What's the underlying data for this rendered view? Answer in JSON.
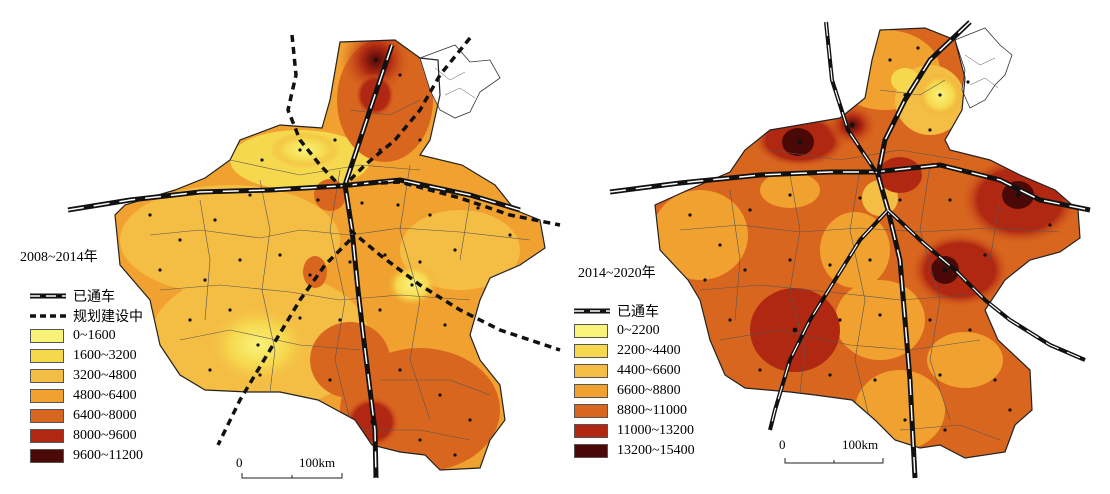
{
  "left_map": {
    "title": "2008~2014年",
    "legend": {
      "rail_operational": "已通车",
      "rail_planned": "规划建设中",
      "classes": [
        {
          "label": "0~1600",
          "color": "#f9f37a"
        },
        {
          "label": "1600~3200",
          "color": "#f6d84e"
        },
        {
          "label": "3200~4800",
          "color": "#f4bd44"
        },
        {
          "label": "4800~6400",
          "color": "#f0a12f"
        },
        {
          "label": "6400~8000",
          "color": "#d9661f"
        },
        {
          "label": "8000~9600",
          "color": "#b02812"
        },
        {
          "label": "9600~11200",
          "color": "#4a0906"
        }
      ]
    },
    "scale": {
      "zero": "0",
      "distance": "100km"
    }
  },
  "right_map": {
    "title": "2014~2020年",
    "legend": {
      "rail_operational": "已通车",
      "classes": [
        {
          "label": "0~2200",
          "color": "#f9f37a"
        },
        {
          "label": "2200~4400",
          "color": "#f6d84e"
        },
        {
          "label": "4400~6600",
          "color": "#f4bd44"
        },
        {
          "label": "6600~8800",
          "color": "#f0a12f"
        },
        {
          "label": "8800~11000",
          "color": "#d9661f"
        },
        {
          "label": "11000~13200",
          "color": "#b02812"
        },
        {
          "label": "13200~15400",
          "color": "#4a0906"
        }
      ]
    },
    "scale": {
      "zero": "0",
      "distance": "100km"
    }
  }
}
